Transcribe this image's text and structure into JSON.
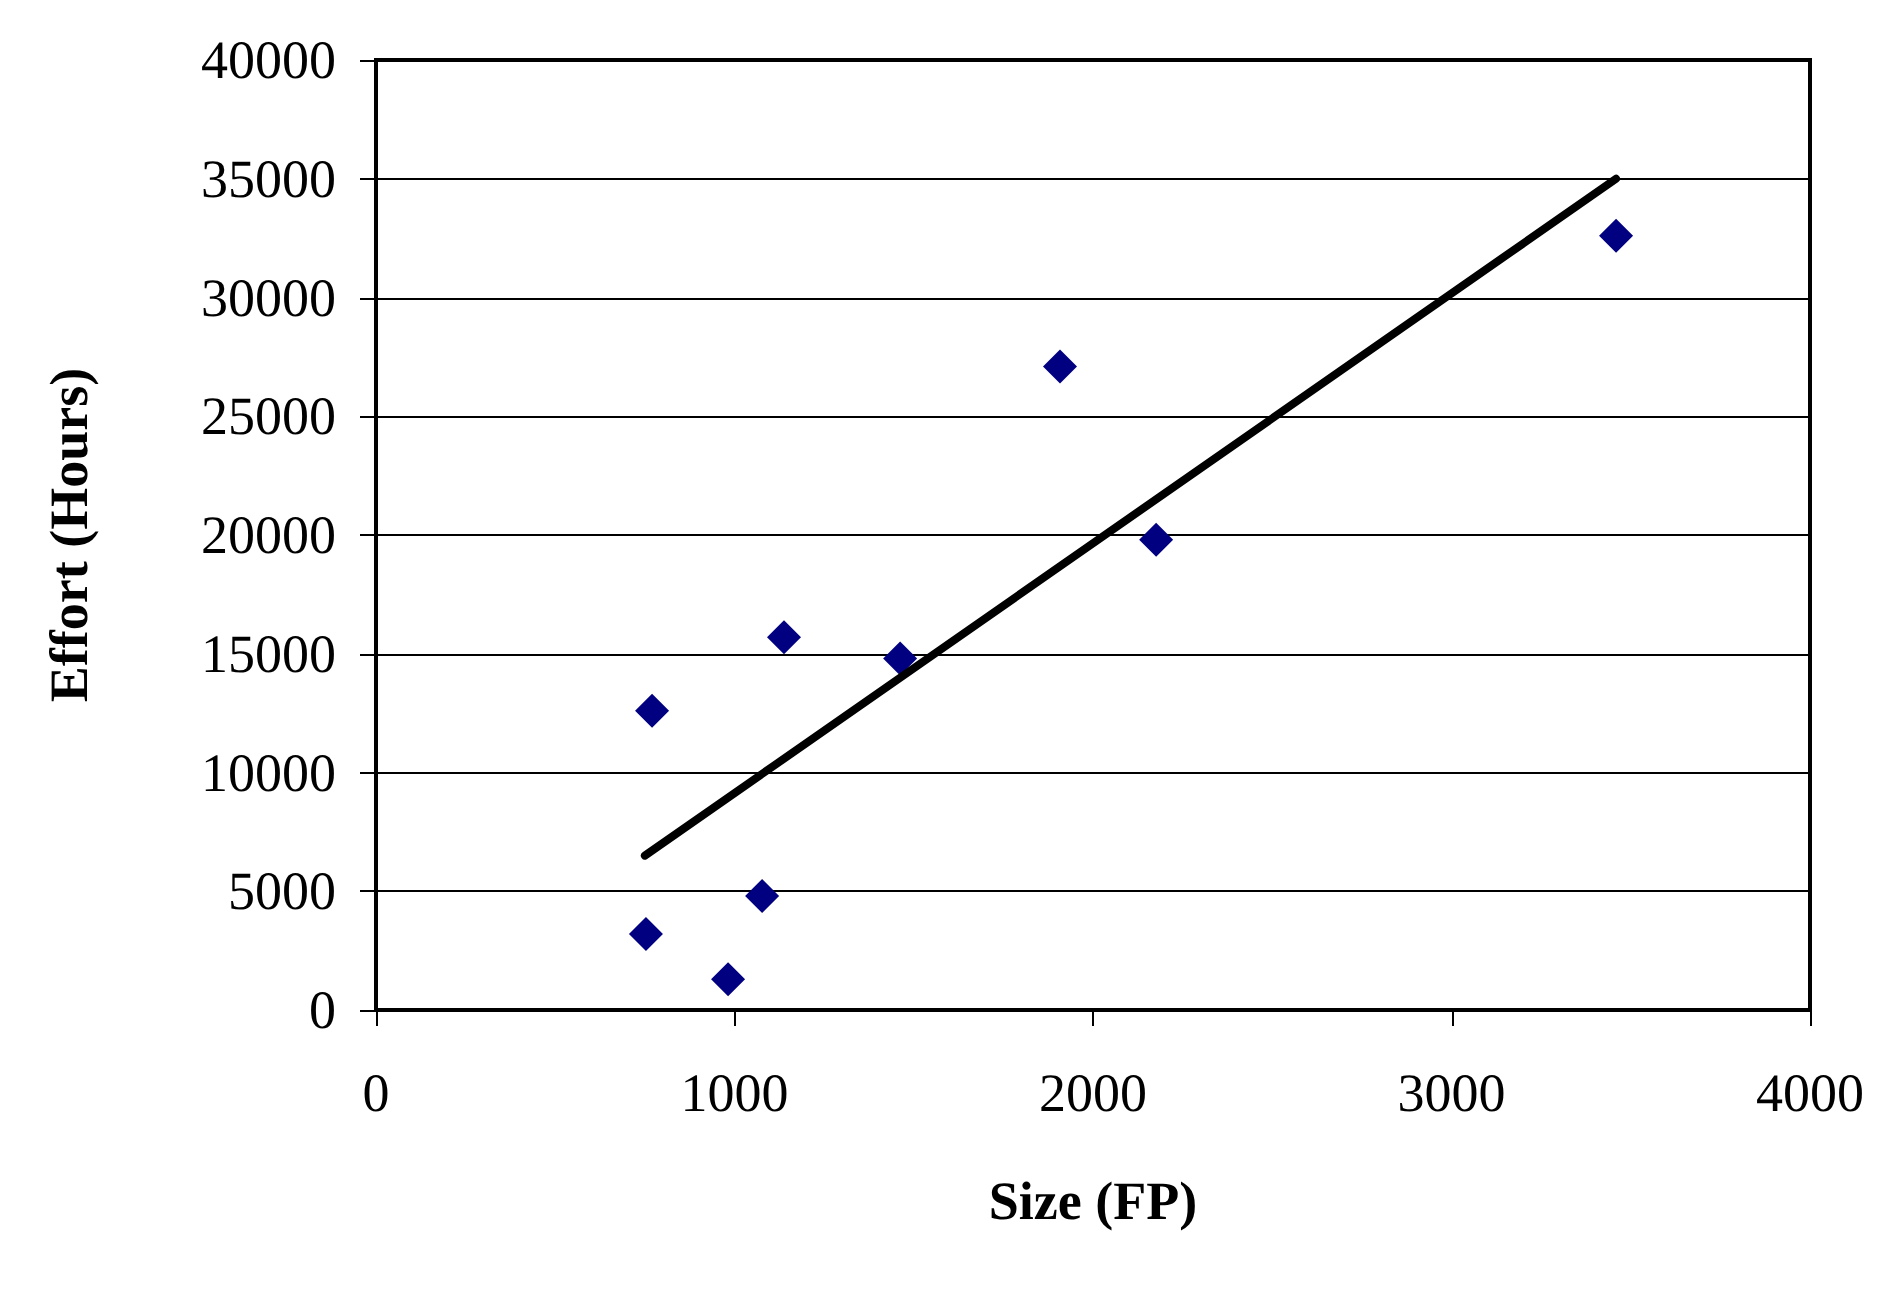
{
  "chart_data": {
    "type": "scatter",
    "xlabel": "Size (FP)",
    "ylabel": "Effort (Hours)",
    "series": [
      {
        "color": "#000080",
        "marker": "diamond",
        "x": [
          753,
          770,
          982,
          1077,
          1138,
          1462,
          1908,
          2176,
          3459
        ],
        "values": [
          3200,
          12600,
          1300,
          4800,
          15700,
          14800,
          27100,
          19800,
          32600
        ]
      },
      {
        "type": "line",
        "color": "#000000",
        "marker": "none",
        "line_style": "solid",
        "x": [
          750,
          3459
        ],
        "values": [
          6500,
          35000
        ]
      }
    ],
    "xlim": [
      0,
      4000
    ],
    "xticks": [
      0,
      1000,
      2000,
      3000,
      4000
    ],
    "ylim": [
      0,
      40000
    ],
    "yticks": [
      0,
      5000,
      10000,
      15000,
      20000,
      25000,
      30000,
      35000,
      40000
    ],
    "grid": "y"
  }
}
